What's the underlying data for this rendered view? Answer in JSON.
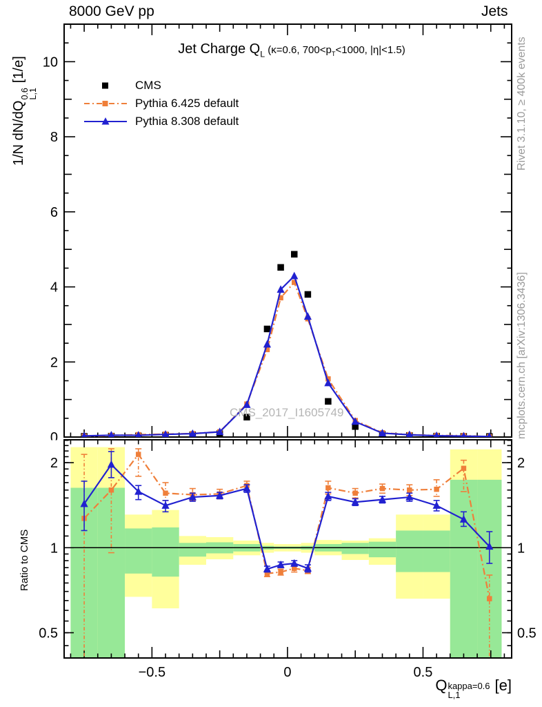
{
  "header": {
    "left": "8000 GeV pp",
    "right": "Jets"
  },
  "title": {
    "main": "Jet Charge Q",
    "main_sub": "L",
    "cond_pre": " (κ=0.6, 700<p",
    "cond_sub": "T",
    "cond_post": "<1000, |η|<1.5)"
  },
  "y_axis_label": {
    "pre": "1/N dN/dQ",
    "sup": "0.6",
    "sub": "L,1",
    "post": "[1/e]"
  },
  "x_axis_label": {
    "base": "Q",
    "sup": "kappa=0.6",
    "sub": "L,1",
    "post": "[e]"
  },
  "ratio_axis_label": "Ratio to CMS",
  "side_notes": {
    "top": "Rivet 3.1.10, ≥ 400k events",
    "bottom": "mcplots.cern.ch [arXiv:1306.3436]"
  },
  "watermark": "CMS_2017_I1605749",
  "legend": [
    {
      "label": "CMS",
      "marker": "black-square"
    },
    {
      "label": "Pythia 6.425 default",
      "marker": "orange-square-dashdot"
    },
    {
      "label": "Pythia 8.308 default",
      "marker": "blue-triangle-line"
    }
  ],
  "colors": {
    "cms": "#000000",
    "pythia6": "#ef7f3a",
    "pythia8": "#2121d0",
    "band_yellow": "#ffff9c",
    "band_green": "#97e897",
    "gray_text": "#9a9a9a",
    "watermark": "#b5b5b5"
  },
  "chart_data": {
    "type": "line",
    "title": "Jet Charge QL (κ=0.6, 700<pT<1000, |η|<1.5)",
    "xlabel": "QL,1 kappa=0.6 [e]",
    "ylabel": "1/N dN/dQL,1^0.6 [1/e]",
    "ratio_ylabel": "Ratio to CMS",
    "x_range": [
      -0.824,
      0.827
    ],
    "main_y_range": [
      0,
      11.0
    ],
    "ratio_y_range": [
      0.407,
      2.41
    ],
    "ratio_log": true,
    "x_ticks_major": [
      -0.5,
      0,
      0.5
    ],
    "x_tick_labels": [
      "−0.5",
      "0",
      "0.5"
    ],
    "main_y_ticks": [
      0,
      2,
      4,
      6,
      8,
      10
    ],
    "main_y_tick_labels": [
      "0",
      "2",
      "4",
      "6",
      "8",
      "10"
    ],
    "ratio_y_ticks": [
      0.5,
      1,
      2
    ],
    "ratio_y_tick_labels": [
      "0.5",
      "1",
      "2"
    ],
    "bin_edges": [
      -0.8,
      -0.7,
      -0.6,
      -0.5,
      -0.4,
      -0.3,
      -0.2,
      -0.1,
      -0.05,
      0,
      0.05,
      0.1,
      0.2,
      0.3,
      0.4,
      0.5,
      0.6,
      0.7,
      0.79
    ],
    "bin_centers": [
      -0.75,
      -0.65,
      -0.55,
      -0.45,
      -0.35,
      -0.25,
      -0.15,
      -0.075,
      -0.025,
      0.025,
      0.075,
      0.15,
      0.25,
      0.35,
      0.45,
      0.55,
      0.65,
      0.745
    ],
    "series": [
      {
        "name": "CMS",
        "values": [
          0.02,
          0.025,
          0.03,
          0.05,
          0.06,
          0.09,
          0.53,
          2.88,
          4.52,
          4.87,
          3.8,
          0.95,
          0.28,
          0.07,
          0.04,
          0.025,
          0.02,
          0.015
        ]
      },
      {
        "name": "Pythia 6.425 default",
        "values": [
          0.025,
          0.04,
          0.064,
          0.078,
          0.092,
          0.14,
          0.88,
          2.33,
          3.71,
          4.12,
          3.15,
          1.55,
          0.44,
          0.113,
          0.064,
          0.04,
          0.038,
          0.01
        ]
      },
      {
        "name": "Pythia 8.308 default",
        "values": [
          0.029,
          0.049,
          0.047,
          0.07,
          0.091,
          0.138,
          0.86,
          2.47,
          3.93,
          4.29,
          3.21,
          1.44,
          0.41,
          0.104,
          0.06,
          0.035,
          0.025,
          0.015
        ]
      }
    ],
    "ratio_series": [
      {
        "name": "Pythia 6.425 default",
        "values": [
          1.27,
          1.6,
          2.14,
          1.56,
          1.54,
          1.55,
          1.66,
          0.81,
          0.82,
          0.845,
          0.83,
          1.63,
          1.56,
          1.62,
          1.6,
          1.61,
          1.91,
          0.66
        ],
        "err_lo": [
          0.4,
          0.96,
          1.79,
          1.47,
          1.47,
          1.49,
          1.6,
          0.79,
          0.8,
          0.82,
          0.81,
          1.55,
          1.5,
          1.56,
          1.53,
          1.52,
          1.58,
          0.4
        ],
        "err_hi": [
          2.14,
          2.24,
          2.24,
          1.7,
          1.62,
          1.61,
          1.72,
          0.83,
          0.84,
          0.87,
          0.85,
          1.72,
          1.62,
          1.68,
          1.67,
          1.74,
          2.04,
          0.8
        ]
      },
      {
        "name": "Pythia 8.308 default",
        "values": [
          1.43,
          1.97,
          1.58,
          1.41,
          1.51,
          1.53,
          1.62,
          0.84,
          0.87,
          0.88,
          0.845,
          1.52,
          1.45,
          1.48,
          1.51,
          1.41,
          1.26,
          1.01
        ],
        "err_lo": [
          1.15,
          1.77,
          1.48,
          1.34,
          1.46,
          1.49,
          1.57,
          0.82,
          0.85,
          0.86,
          0.82,
          1.47,
          1.41,
          1.44,
          1.46,
          1.35,
          1.19,
          0.88
        ],
        "err_hi": [
          1.72,
          2.19,
          1.66,
          1.47,
          1.56,
          1.57,
          1.67,
          0.86,
          0.89,
          0.9,
          0.87,
          1.57,
          1.49,
          1.52,
          1.56,
          1.47,
          1.34,
          1.14
        ]
      }
    ],
    "ratio_bands": {
      "yellow": [
        [
          0.4,
          2.27
        ],
        [
          0.4,
          2.27
        ],
        [
          0.67,
          1.31
        ],
        [
          0.61,
          1.36
        ],
        [
          0.87,
          1.1
        ],
        [
          0.91,
          1.09
        ],
        [
          0.94,
          1.06
        ],
        [
          0.96,
          1.04
        ],
        [
          0.97,
          1.03
        ],
        [
          0.97,
          1.03
        ],
        [
          0.96,
          1.04
        ],
        [
          0.94,
          1.065
        ],
        [
          0.905,
          1.06
        ],
        [
          0.87,
          1.08
        ],
        [
          0.66,
          1.31
        ],
        [
          0.66,
          1.31
        ],
        [
          0.4,
          2.23
        ],
        [
          0.4,
          2.23
        ]
      ],
      "green": [
        [
          0.4,
          1.63
        ],
        [
          0.4,
          1.63
        ],
        [
          0.81,
          1.17
        ],
        [
          0.79,
          1.18
        ],
        [
          0.93,
          1.04
        ],
        [
          0.955,
          1.045
        ],
        [
          0.97,
          1.03
        ],
        [
          0.985,
          1.015
        ],
        [
          0.99,
          1.01
        ],
        [
          0.99,
          1.01
        ],
        [
          0.985,
          1.015
        ],
        [
          0.97,
          1.03
        ],
        [
          0.95,
          1.04
        ],
        [
          0.925,
          1.05
        ],
        [
          0.82,
          1.15
        ],
        [
          0.82,
          1.15
        ],
        [
          0.4,
          1.74
        ],
        [
          0.4,
          1.74
        ]
      ]
    },
    "legend_position": "top-left-inside",
    "grid": false
  }
}
